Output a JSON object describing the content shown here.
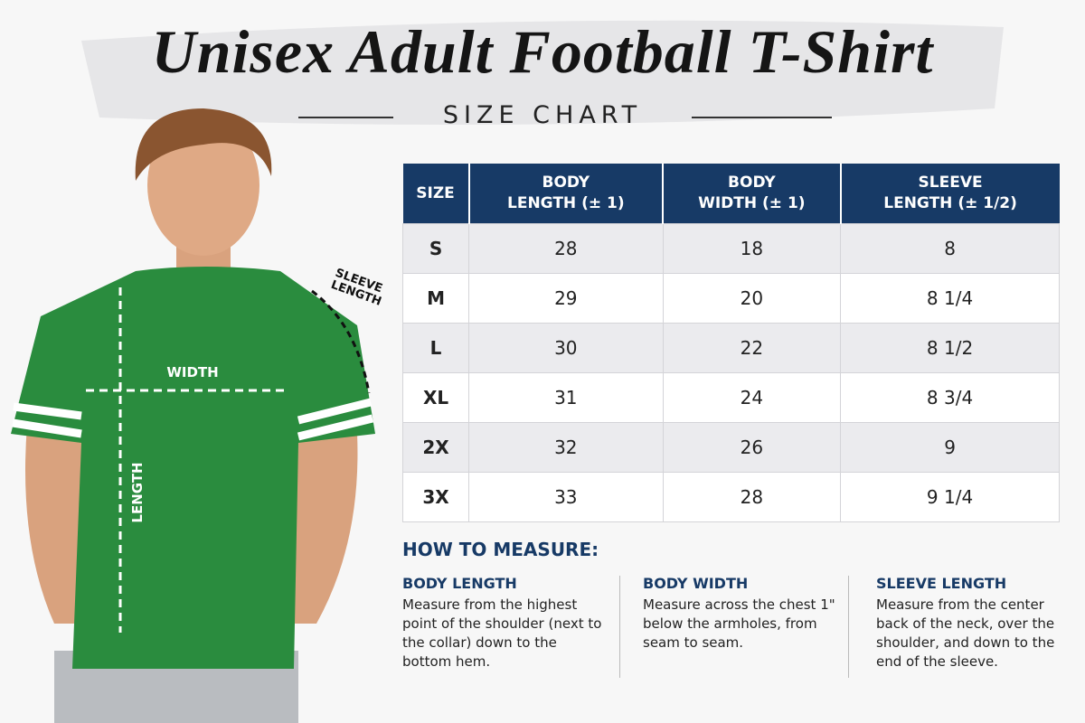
{
  "header": {
    "title": "Unisex Adult Football T-Shirt",
    "subtitle": "SIZE CHART"
  },
  "figure": {
    "width_label": "WIDTH",
    "length_label": "LENGTH",
    "sleeve_label": "SLEEVE\nLENGTH"
  },
  "table": {
    "columns": [
      "SIZE",
      "BODY\nLENGTH (± 1)",
      "BODY\nWIDTH (± 1)",
      "SLEEVE\nLENGTH (± 1/2)"
    ],
    "rows": [
      [
        "S",
        "28",
        "18",
        "8"
      ],
      [
        "M",
        "29",
        "20",
        "8 1/4"
      ],
      [
        "L",
        "30",
        "22",
        "8 1/2"
      ],
      [
        "XL",
        "31",
        "24",
        "8 3/4"
      ],
      [
        "2X",
        "32",
        "26",
        "9"
      ],
      [
        "3X",
        "33",
        "28",
        "9 1/4"
      ]
    ]
  },
  "measure": {
    "heading": "HOW TO MEASURE:",
    "items": [
      {
        "title": "BODY LENGTH",
        "text": "Measure from the highest point of the shoulder (next to the collar) down to the bottom hem."
      },
      {
        "title": "BODY WIDTH",
        "text": "Measure across the chest 1\" below the armholes, from seam to seam."
      },
      {
        "title": "SLEEVE LENGTH",
        "text": "Measure from the center back of the neck, over the shoulder, and down to the end of the sleeve."
      }
    ]
  }
}
